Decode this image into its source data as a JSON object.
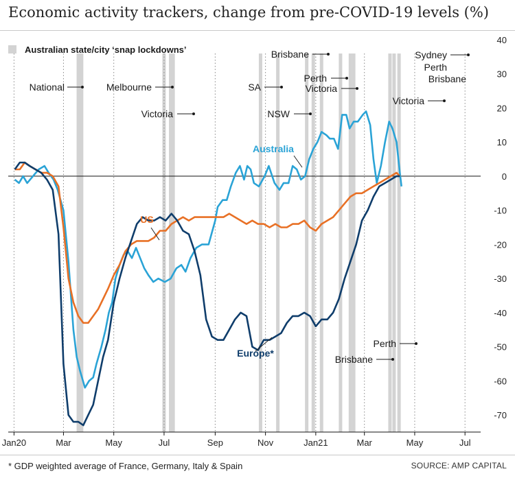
{
  "title": "Economic activity trackers, change from pre-COVID-19 levels (%)",
  "footnote": "* GDP weighted average of France, Germany, Italy & Spain",
  "source": "SOURCE: AMP CAPITAL",
  "legend": {
    "lockdowns_label": "Australian state/city ‘snap lockdowns’"
  },
  "colors": {
    "australia": "#2aa3d6",
    "us": "#e87025",
    "europe": "#0f3d6b",
    "lockdown_band": "#d3d3d3",
    "dotted": "#888888"
  },
  "chart_data": {
    "type": "line",
    "title": "Economic activity trackers, change from pre-COVID-19 levels (%)",
    "x_axis": {
      "type": "date",
      "tick_labels": [
        "Jan20",
        "Mar",
        "May",
        "Jul",
        "Sep",
        "Nov",
        "Jan21",
        "Mar",
        "May",
        "Jul"
      ],
      "tick_dates": [
        "2020-01-01",
        "2020-03-01",
        "2020-05-01",
        "2020-07-01",
        "2020-09-01",
        "2020-11-01",
        "2021-01-01",
        "2021-03-01",
        "2021-05-01",
        "2021-07-01"
      ],
      "range": [
        "2019-12-25",
        "2021-07-20"
      ]
    },
    "y_axis": {
      "position": "right",
      "range": [
        -75,
        42
      ],
      "ticks": [
        40,
        30,
        20,
        10,
        0,
        -10,
        -20,
        -30,
        -40,
        -50,
        -60,
        -70
      ]
    },
    "grid": "vertical dotted lines at month markers",
    "series": [
      {
        "name": "Australia",
        "points": [
          [
            "2020-01-02",
            -1
          ],
          [
            "2020-01-07",
            -2
          ],
          [
            "2020-01-12",
            0
          ],
          [
            "2020-01-17",
            -2
          ],
          [
            "2020-01-24",
            0
          ],
          [
            "2020-01-31",
            2
          ],
          [
            "2020-02-07",
            3
          ],
          [
            "2020-02-12",
            1
          ],
          [
            "2020-02-18",
            -1
          ],
          [
            "2020-02-23",
            -4
          ],
          [
            "2020-03-01",
            -10
          ],
          [
            "2020-03-07",
            -25
          ],
          [
            "2020-03-13",
            -45
          ],
          [
            "2020-03-17",
            -53
          ],
          [
            "2020-03-21",
            -57
          ],
          [
            "2020-03-27",
            -62
          ],
          [
            "2020-04-01",
            -60
          ],
          [
            "2020-04-06",
            -59
          ],
          [
            "2020-04-10",
            -55
          ],
          [
            "2020-04-16",
            -50
          ],
          [
            "2020-04-21",
            -45
          ],
          [
            "2020-04-25",
            -40
          ],
          [
            "2020-04-29",
            -37
          ],
          [
            "2020-05-03",
            -30
          ],
          [
            "2020-05-08",
            -26
          ],
          [
            "2020-05-13",
            -23
          ],
          [
            "2020-05-18",
            -22
          ],
          [
            "2020-05-23",
            -24
          ],
          [
            "2020-05-28",
            -21
          ],
          [
            "2020-06-02",
            -24
          ],
          [
            "2020-06-07",
            -27
          ],
          [
            "2020-06-12",
            -29
          ],
          [
            "2020-06-18",
            -31
          ],
          [
            "2020-06-24",
            -30
          ],
          [
            "2020-07-02",
            -31
          ],
          [
            "2020-07-09",
            -30
          ],
          [
            "2020-07-16",
            -27
          ],
          [
            "2020-07-22",
            -26
          ],
          [
            "2020-07-27",
            -28
          ],
          [
            "2020-08-02",
            -24
          ],
          [
            "2020-08-09",
            -21
          ],
          [
            "2020-08-16",
            -20
          ],
          [
            "2020-08-24",
            -20
          ],
          [
            "2020-09-01",
            -13
          ],
          [
            "2020-09-04",
            -9
          ],
          [
            "2020-09-10",
            -7
          ],
          [
            "2020-09-15",
            -7
          ],
          [
            "2020-09-20",
            -3
          ],
          [
            "2020-09-26",
            1
          ],
          [
            "2020-10-01",
            3
          ],
          [
            "2020-10-06",
            -1
          ],
          [
            "2020-10-10",
            3
          ],
          [
            "2020-10-14",
            2
          ],
          [
            "2020-10-18",
            -2
          ],
          [
            "2020-10-24",
            -3
          ],
          [
            "2020-10-31",
            0
          ],
          [
            "2020-11-05",
            3
          ],
          [
            "2020-11-12",
            -2
          ],
          [
            "2020-11-18",
            -4
          ],
          [
            "2020-11-23",
            -2
          ],
          [
            "2020-11-29",
            -2
          ],
          [
            "2020-12-04",
            3
          ],
          [
            "2020-12-09",
            2
          ],
          [
            "2020-12-14",
            -1
          ],
          [
            "2020-12-19",
            0
          ],
          [
            "2020-12-24",
            5
          ],
          [
            "2020-12-29",
            8
          ],
          [
            "2021-01-03",
            10
          ],
          [
            "2021-01-08",
            13
          ],
          [
            "2021-01-14",
            12
          ],
          [
            "2021-01-18",
            11
          ],
          [
            "2021-01-23",
            11
          ],
          [
            "2021-01-28",
            8
          ],
          [
            "2021-02-02",
            18
          ],
          [
            "2021-02-07",
            18
          ],
          [
            "2021-02-11",
            14
          ],
          [
            "2021-02-16",
            16
          ],
          [
            "2021-02-21",
            16
          ],
          [
            "2021-02-27",
            18
          ],
          [
            "2021-03-03",
            19
          ],
          [
            "2021-03-08",
            15
          ],
          [
            "2021-03-12",
            5
          ],
          [
            "2021-03-16",
            -2
          ],
          [
            "2021-03-21",
            3
          ],
          [
            "2021-03-26",
            10
          ],
          [
            "2021-03-31",
            16
          ],
          [
            "2021-04-04",
            14
          ],
          [
            "2021-04-09",
            10
          ],
          [
            "2021-04-13",
            1
          ],
          [
            "2021-04-15",
            -3
          ]
        ]
      },
      {
        "name": "US",
        "points": [
          [
            "2020-01-02",
            2
          ],
          [
            "2020-01-08",
            2
          ],
          [
            "2020-01-14",
            4
          ],
          [
            "2020-01-20",
            3
          ],
          [
            "2020-01-27",
            2
          ],
          [
            "2020-02-03",
            1
          ],
          [
            "2020-02-10",
            1
          ],
          [
            "2020-02-17",
            0
          ],
          [
            "2020-02-24",
            -3
          ],
          [
            "2020-03-01",
            -15
          ],
          [
            "2020-03-07",
            -30
          ],
          [
            "2020-03-13",
            -37
          ],
          [
            "2020-03-19",
            -41
          ],
          [
            "2020-03-25",
            -43
          ],
          [
            "2020-03-31",
            -43
          ],
          [
            "2020-04-06",
            -41
          ],
          [
            "2020-04-12",
            -39
          ],
          [
            "2020-04-18",
            -36
          ],
          [
            "2020-04-24",
            -33
          ],
          [
            "2020-05-01",
            -29
          ],
          [
            "2020-05-08",
            -26
          ],
          [
            "2020-05-15",
            -22
          ],
          [
            "2020-05-22",
            -20
          ],
          [
            "2020-05-29",
            -19
          ],
          [
            "2020-06-05",
            -19
          ],
          [
            "2020-06-12",
            -19
          ],
          [
            "2020-06-19",
            -18
          ],
          [
            "2020-06-26",
            -16
          ],
          [
            "2020-07-03",
            -16
          ],
          [
            "2020-07-10",
            -14
          ],
          [
            "2020-07-17",
            -13
          ],
          [
            "2020-07-24",
            -12
          ],
          [
            "2020-07-31",
            -13
          ],
          [
            "2020-08-07",
            -12
          ],
          [
            "2020-08-14",
            -12
          ],
          [
            "2020-08-21",
            -12
          ],
          [
            "2020-08-28",
            -12
          ],
          [
            "2020-09-04",
            -12
          ],
          [
            "2020-09-11",
            -12
          ],
          [
            "2020-09-18",
            -11
          ],
          [
            "2020-09-25",
            -12
          ],
          [
            "2020-10-02",
            -13
          ],
          [
            "2020-10-09",
            -14
          ],
          [
            "2020-10-16",
            -13
          ],
          [
            "2020-10-23",
            -14
          ],
          [
            "2020-10-30",
            -14
          ],
          [
            "2020-11-06",
            -15
          ],
          [
            "2020-11-13",
            -14
          ],
          [
            "2020-11-20",
            -15
          ],
          [
            "2020-11-27",
            -15
          ],
          [
            "2020-12-04",
            -14
          ],
          [
            "2020-12-11",
            -14
          ],
          [
            "2020-12-18",
            -13
          ],
          [
            "2020-12-25",
            -15
          ],
          [
            "2021-01-01",
            -16
          ],
          [
            "2021-01-08",
            -14
          ],
          [
            "2021-01-15",
            -13
          ],
          [
            "2021-01-22",
            -12
          ],
          [
            "2021-01-29",
            -10
          ],
          [
            "2021-02-05",
            -8
          ],
          [
            "2021-02-12",
            -6
          ],
          [
            "2021-02-19",
            -5
          ],
          [
            "2021-02-26",
            -5
          ],
          [
            "2021-03-05",
            -4
          ],
          [
            "2021-03-12",
            -3
          ],
          [
            "2021-03-19",
            -2
          ],
          [
            "2021-03-26",
            -1
          ],
          [
            "2021-04-02",
            0
          ],
          [
            "2021-04-09",
            1
          ],
          [
            "2021-04-13",
            0
          ]
        ]
      },
      {
        "name": "Europe*",
        "points": [
          [
            "2020-01-02",
            2
          ],
          [
            "2020-01-08",
            4
          ],
          [
            "2020-01-14",
            4
          ],
          [
            "2020-01-20",
            3
          ],
          [
            "2020-01-27",
            2
          ],
          [
            "2020-02-03",
            1
          ],
          [
            "2020-02-10",
            -1
          ],
          [
            "2020-02-17",
            -4
          ],
          [
            "2020-02-24",
            -17
          ],
          [
            "2020-03-01",
            -55
          ],
          [
            "2020-03-07",
            -70
          ],
          [
            "2020-03-13",
            -72
          ],
          [
            "2020-03-19",
            -72
          ],
          [
            "2020-03-25",
            -73
          ],
          [
            "2020-03-31",
            -70
          ],
          [
            "2020-04-06",
            -67
          ],
          [
            "2020-04-12",
            -60
          ],
          [
            "2020-04-18",
            -53
          ],
          [
            "2020-04-24",
            -48
          ],
          [
            "2020-05-01",
            -37
          ],
          [
            "2020-05-08",
            -30
          ],
          [
            "2020-05-15",
            -24
          ],
          [
            "2020-05-22",
            -19
          ],
          [
            "2020-05-29",
            -14
          ],
          [
            "2020-06-05",
            -12
          ],
          [
            "2020-06-12",
            -13
          ],
          [
            "2020-06-19",
            -13
          ],
          [
            "2020-06-26",
            -12
          ],
          [
            "2020-07-03",
            -13
          ],
          [
            "2020-07-10",
            -11
          ],
          [
            "2020-07-17",
            -13
          ],
          [
            "2020-07-24",
            -16
          ],
          [
            "2020-07-31",
            -17
          ],
          [
            "2020-08-07",
            -22
          ],
          [
            "2020-08-14",
            -29
          ],
          [
            "2020-08-21",
            -42
          ],
          [
            "2020-08-28",
            -47
          ],
          [
            "2020-09-04",
            -48
          ],
          [
            "2020-09-11",
            -48
          ],
          [
            "2020-09-18",
            -45
          ],
          [
            "2020-09-25",
            -42
          ],
          [
            "2020-10-02",
            -40
          ],
          [
            "2020-10-09",
            -41
          ],
          [
            "2020-10-16",
            -50
          ],
          [
            "2020-10-23",
            -51
          ],
          [
            "2020-10-30",
            -48
          ],
          [
            "2020-11-06",
            -48
          ],
          [
            "2020-11-13",
            -47
          ],
          [
            "2020-11-20",
            -46
          ],
          [
            "2020-11-27",
            -43
          ],
          [
            "2020-12-04",
            -41
          ],
          [
            "2020-12-11",
            -41
          ],
          [
            "2020-12-18",
            -40
          ],
          [
            "2020-12-25",
            -41
          ],
          [
            "2021-01-01",
            -44
          ],
          [
            "2021-01-08",
            -42
          ],
          [
            "2021-01-15",
            -42
          ],
          [
            "2021-01-22",
            -40
          ],
          [
            "2021-01-29",
            -36
          ],
          [
            "2021-02-05",
            -30
          ],
          [
            "2021-02-12",
            -25
          ],
          [
            "2021-02-19",
            -20
          ],
          [
            "2021-02-26",
            -13
          ],
          [
            "2021-03-05",
            -10
          ],
          [
            "2021-03-12",
            -6
          ],
          [
            "2021-03-19",
            -3
          ],
          [
            "2021-03-26",
            -2
          ],
          [
            "2021-04-02",
            -1
          ],
          [
            "2021-04-09",
            0
          ],
          [
            "2021-04-13",
            0
          ]
        ]
      }
    ],
    "series_labels": [
      "Australia",
      "US",
      "Europe*"
    ],
    "annotations": {
      "month_markers": [
        "National",
        "Melbourne",
        "Victoria",
        "SA",
        "NSW",
        "Brisbane",
        "Perth",
        "Victoria",
        "Victoria",
        "Sydney",
        "Perth",
        "Brisbane",
        "Perth",
        "Brisbane"
      ]
    }
  }
}
